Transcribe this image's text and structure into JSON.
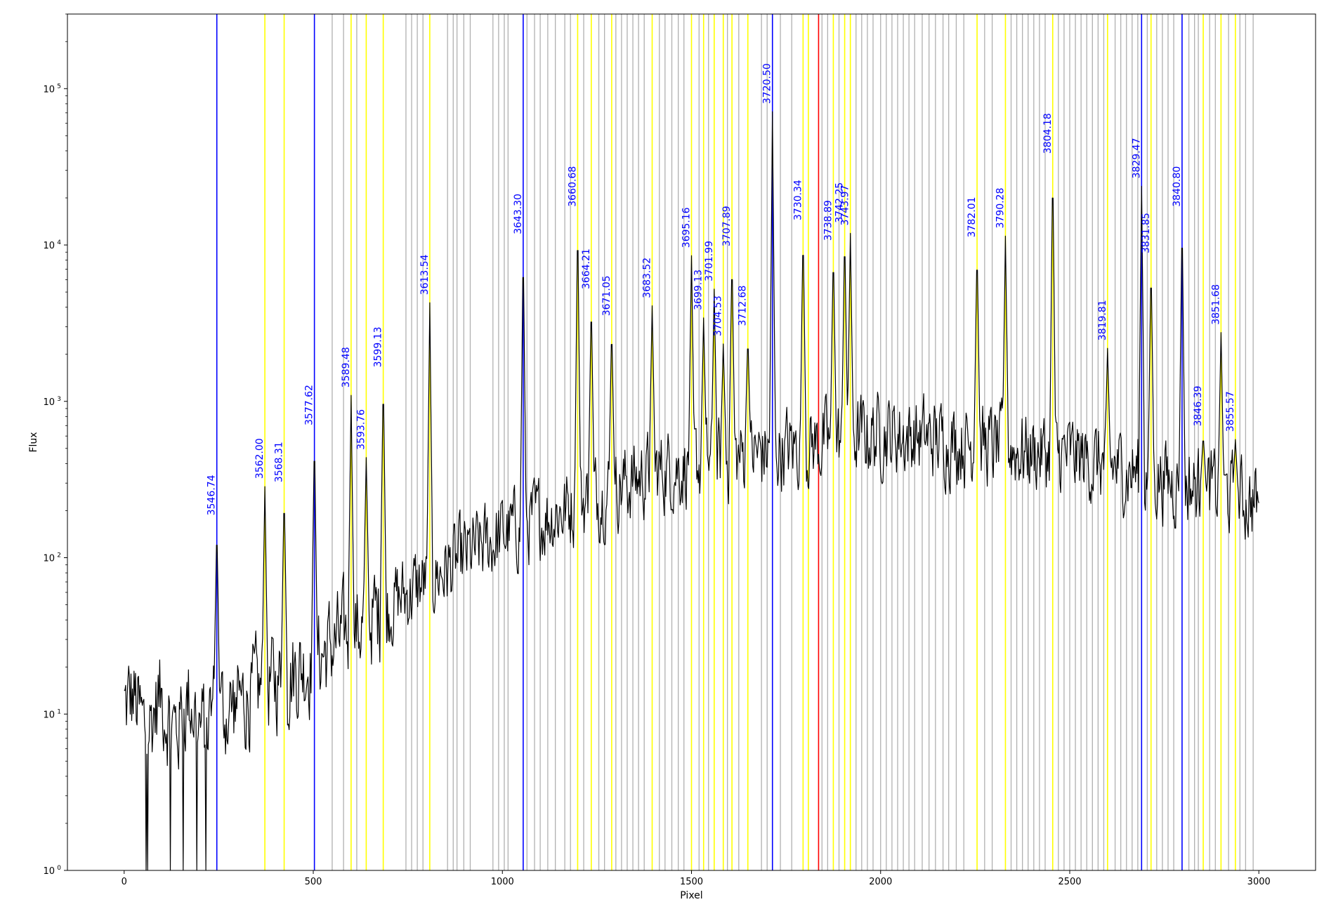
{
  "chart_data": {
    "type": "line",
    "xlabel": "Pixel",
    "ylabel": "Flux",
    "xlim": [
      -150,
      3150
    ],
    "ylim": [
      1,
      300000
    ],
    "yscale": "log",
    "grid": false,
    "x_ticks": [
      0,
      500,
      1000,
      1500,
      2000,
      2500,
      3000
    ],
    "x_tick_labels": [
      "0",
      "500",
      "1000",
      "1500",
      "2000",
      "2500",
      "3000"
    ],
    "y_ticks": [
      {
        "value": 1,
        "base": "10",
        "exp": "0"
      },
      {
        "value": 10,
        "base": "10",
        "exp": "1"
      },
      {
        "value": 100,
        "base": "10",
        "exp": "2"
      },
      {
        "value": 1000,
        "base": "10",
        "exp": "3"
      },
      {
        "value": 10000,
        "base": "10",
        "exp": "4"
      },
      {
        "value": 100000,
        "base": "10",
        "exp": "5"
      }
    ],
    "line_colors": {
      "blue": "#0000ff",
      "yellow": "#ffff00",
      "red": "#ff0000",
      "gray": "#b0b0b0",
      "spectrum": "#000000"
    },
    "blue_lines": [
      245,
      503,
      1055,
      1714,
      2690,
      2797
    ],
    "red_lines": [
      1836
    ],
    "yellow_lines": [
      372,
      423,
      600,
      640,
      685,
      808,
      1199,
      1235,
      1289,
      1396,
      1500,
      1532,
      1560,
      1584,
      1607,
      1649,
      1795,
      1809,
      1875,
      1905,
      1920,
      2255,
      2330,
      2455,
      2600,
      2715,
      2853,
      2900,
      2938
    ],
    "gray_lines": [
      550,
      580,
      615,
      745,
      760,
      775,
      790,
      855,
      870,
      880,
      898,
      915,
      975,
      990,
      1005,
      1015,
      1065,
      1085,
      1100,
      1120,
      1140,
      1165,
      1180,
      1215,
      1255,
      1270,
      1300,
      1315,
      1330,
      1345,
      1360,
      1375,
      1415,
      1430,
      1448,
      1465,
      1480,
      1520,
      1545,
      1595,
      1625,
      1685,
      1700,
      1735,
      1765,
      1845,
      1860,
      1890,
      1935,
      1950,
      1965,
      1980,
      2000,
      2015,
      2030,
      2045,
      2060,
      2075,
      2090,
      2110,
      2128,
      2145,
      2165,
      2180,
      2200,
      2220,
      2275,
      2295,
      2345,
      2360,
      2375,
      2390,
      2405,
      2420,
      2435,
      2470,
      2485,
      2500,
      2515,
      2530,
      2545,
      2560,
      2575,
      2590,
      2620,
      2635,
      2650,
      2665,
      2680,
      2705,
      2730,
      2745,
      2760,
      2775,
      2815,
      2830,
      2840,
      2870,
      2885,
      2920,
      2950,
      2965,
      2985
    ],
    "line_labels": [
      {
        "label": "3546.74",
        "x": 245,
        "flux": 175
      },
      {
        "label": "3562.00",
        "x": 372,
        "flux": 300
      },
      {
        "label": "3568.31",
        "x": 423,
        "flux": 285
      },
      {
        "label": "3577.62",
        "x": 503,
        "flux": 660
      },
      {
        "label": "3589.48",
        "x": 600,
        "flux": 1150
      },
      {
        "label": "3593.76",
        "x": 640,
        "flux": 460
      },
      {
        "label": "3599.13",
        "x": 685,
        "flux": 1550
      },
      {
        "label": "3613.54",
        "x": 808,
        "flux": 4500
      },
      {
        "label": "3643.30",
        "x": 1055,
        "flux": 11000
      },
      {
        "label": "3660.68",
        "x": 1199,
        "flux": 16500
      },
      {
        "label": "3664.21",
        "x": 1235,
        "flux": 4900
      },
      {
        "label": "3671.05",
        "x": 1289,
        "flux": 3300
      },
      {
        "label": "3683.52",
        "x": 1396,
        "flux": 4300
      },
      {
        "label": "3695.16",
        "x": 1500,
        "flux": 9000
      },
      {
        "label": "3699.13",
        "x": 1532,
        "flux": 3600
      },
      {
        "label": "3701.99",
        "x": 1560,
        "flux": 5500
      },
      {
        "label": "3704.53",
        "x": 1584,
        "flux": 2450
      },
      {
        "label": "3707.89",
        "x": 1607,
        "flux": 9200
      },
      {
        "label": "3712.68",
        "x": 1649,
        "flux": 2850
      },
      {
        "label": "3720.50",
        "x": 1714,
        "flux": 75000
      },
      {
        "label": "3730.34",
        "x": 1795,
        "flux": 13500
      },
      {
        "label": "3738.89",
        "x": 1875,
        "flux": 10000
      },
      {
        "label": "3742.25",
        "x": 1905,
        "flux": 13000
      },
      {
        "label": "3743.97",
        "x": 1920,
        "flux": 12500
      },
      {
        "label": "3782.01",
        "x": 2255,
        "flux": 10500
      },
      {
        "label": "3790.28",
        "x": 2330,
        "flux": 12000
      },
      {
        "label": "3804.18",
        "x": 2455,
        "flux": 36000
      },
      {
        "label": "3819.81",
        "x": 2600,
        "flux": 2300
      },
      {
        "label": "3829.47",
        "x": 2690,
        "flux": 25000
      },
      {
        "label": "3831.85",
        "x": 2715,
        "flux": 8300
      },
      {
        "label": "3840.80",
        "x": 2797,
        "flux": 16500
      },
      {
        "label": "3846.39",
        "x": 2853,
        "flux": 650
      },
      {
        "label": "3851.68",
        "x": 2900,
        "flux": 2900
      },
      {
        "label": "3855.57",
        "x": 2938,
        "flux": 600
      }
    ]
  }
}
